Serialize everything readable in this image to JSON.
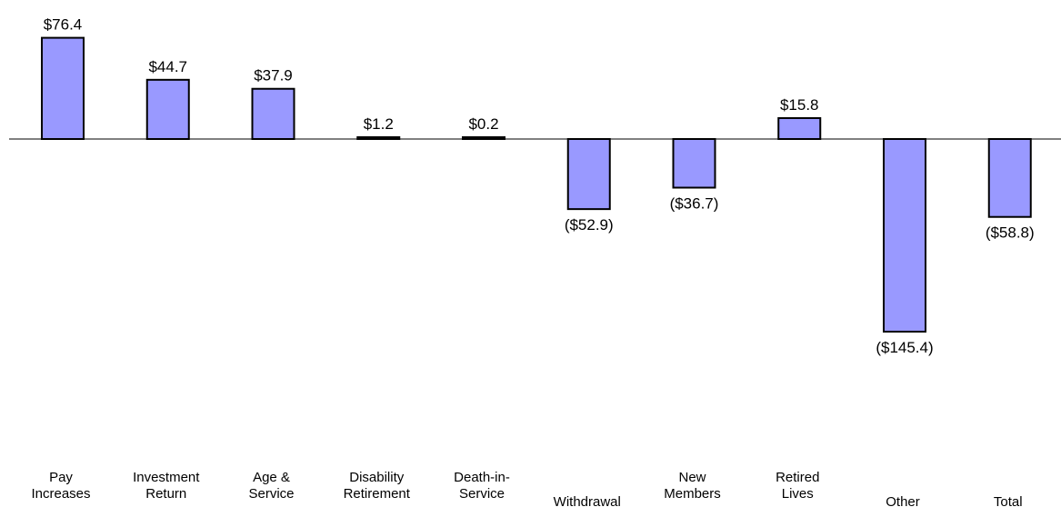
{
  "chart_data": {
    "type": "bar",
    "categories": [
      [
        "Pay",
        "Increases"
      ],
      [
        "Investment",
        "Return"
      ],
      [
        "Age &",
        "Service"
      ],
      [
        "Disability",
        "Retirement"
      ],
      [
        "Death-in-",
        "Service"
      ],
      [
        "Withdrawal"
      ],
      [
        "New",
        "Members"
      ],
      [
        "Retired",
        "Lives"
      ],
      [
        "Other"
      ],
      [
        "Total"
      ]
    ],
    "values": [
      76.4,
      44.7,
      37.9,
      1.2,
      0.2,
      -52.9,
      -36.7,
      15.8,
      -145.4,
      -58.8
    ],
    "value_labels": [
      "$76.4",
      "$44.7",
      "$37.9",
      "$1.2",
      "$0.2",
      "($52.9)",
      "($36.7)",
      "$15.8",
      "($145.4)",
      "($58.8)"
    ],
    "title": "",
    "xlabel": "",
    "ylabel": "",
    "grid": false,
    "colors": {
      "bar_fill": "#9999ff",
      "bar_stroke": "#000000",
      "axis": "#000000"
    }
  }
}
